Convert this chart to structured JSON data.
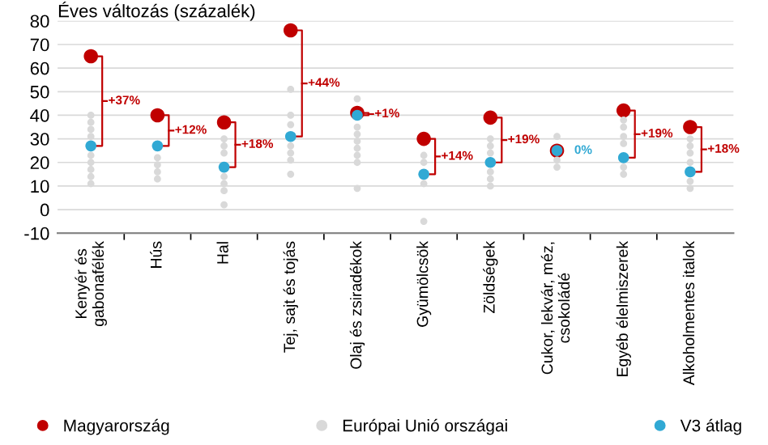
{
  "chart_data": {
    "type": "scatter",
    "ylabel": "Éves változás (százalék)",
    "categories": [
      "Kenyér és\ngabonafélék",
      "Hús",
      "Hal",
      "Tej, sajt és tojás",
      "Olaj és zsiradékok",
      "Gyümölcsök",
      "Zöldségek",
      "Cukor, lekvár, méz,\ncsokoládé",
      "Egyéb élelmiszerek",
      "Alkoholmentes italok"
    ],
    "series": [
      {
        "name": "Magyarország",
        "color": "#c00000",
        "values": [
          65,
          40,
          37,
          76,
          41,
          30,
          39,
          25,
          42,
          35
        ]
      },
      {
        "name": "Európai Unió országai",
        "color": "#d9d9d9",
        "x": [
          "Kenyér és\ngabonafélék",
          "Kenyér és\ngabonafélék",
          "Kenyér és\ngabonafélék",
          "Kenyér és\ngabonafélék",
          "Kenyér és\ngabonafélék",
          "Kenyér és\ngabonafélék",
          "Kenyér és\ngabonafélék",
          "Kenyér és\ngabonafélék",
          "Kenyér és\ngabonafélék",
          "Hús",
          "Hús",
          "Hús",
          "Hús",
          "Hal",
          "Hal",
          "Hal",
          "Hal",
          "Hal",
          "Hal",
          "Hal",
          "Tej, sajt és tojás",
          "Tej, sajt és tojás",
          "Tej, sajt és tojás",
          "Tej, sajt és tojás",
          "Tej, sajt és tojás",
          "Tej, sajt és tojás",
          "Tej, sajt és tojás",
          "Olaj és zsiradékok",
          "Olaj és zsiradékok",
          "Olaj és zsiradékok",
          "Olaj és zsiradékok",
          "Olaj és zsiradékok",
          "Olaj és zsiradékok",
          "Olaj és zsiradékok",
          "Olaj és zsiradékok",
          "Gyümölcsök",
          "Gyümölcsök",
          "Gyümölcsök",
          "Gyümölcsök",
          "Zöldségek",
          "Zöldségek",
          "Zöldségek",
          "Zöldségek",
          "Zöldségek",
          "Zöldségek",
          "Cukor, lekvár, méz,\ncsokoládé",
          "Cukor, lekvár, méz,\ncsokoládé",
          "Cukor, lekvár, méz,\ncsokoládé",
          "Egyéb élelmiszerek",
          "Egyéb élelmiszerek",
          "Egyéb élelmiszerek",
          "Egyéb élelmiszerek",
          "Egyéb élelmiszerek",
          "Egyéb élelmiszerek",
          "Alkoholmentes italok",
          "Alkoholmentes italok",
          "Alkoholmentes italok",
          "Alkoholmentes italok",
          "Alkoholmentes italok",
          "Alkoholmentes italok"
        ],
        "values": [
          40,
          37,
          34,
          31,
          23,
          20,
          17,
          14,
          11,
          22,
          19,
          16,
          13,
          30,
          27,
          24,
          14,
          11,
          8,
          2,
          51,
          40,
          36,
          27,
          24,
          21,
          15,
          47,
          35,
          32,
          29,
          26,
          23,
          20,
          9,
          23,
          20,
          11,
          -5,
          30,
          27,
          24,
          16,
          13,
          10,
          31,
          21,
          18,
          38,
          35,
          31,
          28,
          18,
          15,
          30,
          27,
          24,
          20,
          12,
          9
        ]
      },
      {
        "name": "V3 átlag",
        "color": "#31a9d4",
        "values": [
          27,
          27,
          18,
          31,
          40,
          15,
          20,
          25,
          22,
          16
        ]
      }
    ],
    "annotations": [
      "+37%",
      "+12%",
      "+18%",
      "+44%",
      "+1%",
      "+14%",
      "+19%",
      "0%",
      "+19%",
      "+18%"
    ],
    "ylim": [
      -10,
      80
    ],
    "yticks": [
      -10,
      0,
      10,
      20,
      30,
      40,
      50,
      60,
      70,
      80
    ],
    "grid": "y",
    "legend": "bottom",
    "marker": "circle"
  }
}
